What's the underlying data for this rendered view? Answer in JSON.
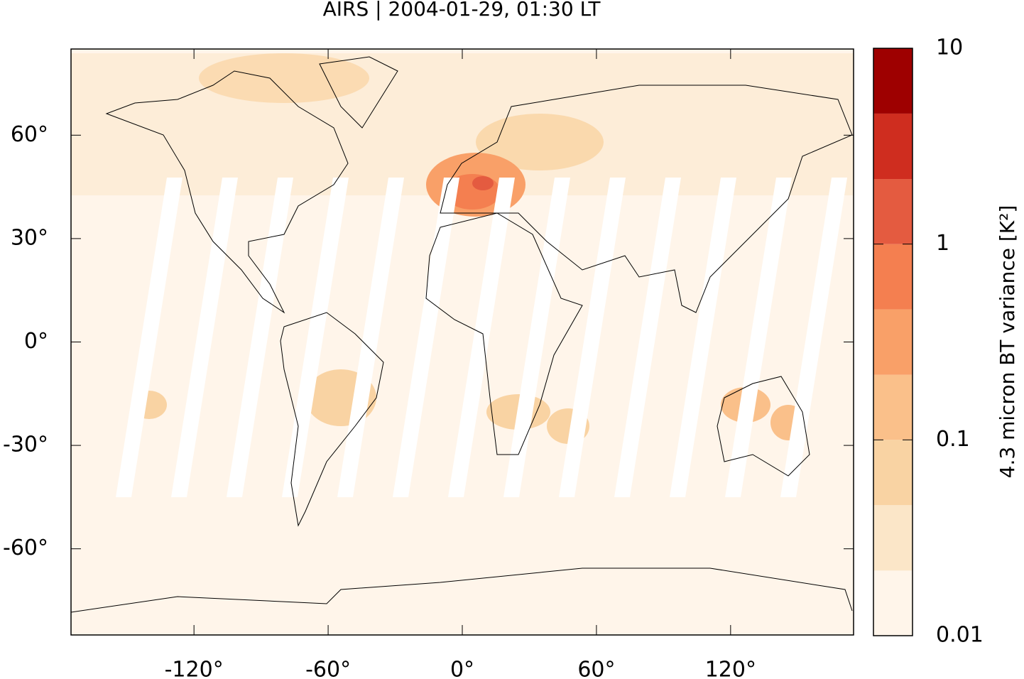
{
  "chart_data": {
    "type": "map",
    "title": "AIRS | 2004-01-29, 01:30 LT",
    "xlim": [
      -175,
      175
    ],
    "ylim": [
      -85,
      85
    ],
    "xticks": [
      {
        "value": -120,
        "label": "-120°"
      },
      {
        "value": -60,
        "label": "-60°"
      },
      {
        "value": 0,
        "label": "0°"
      },
      {
        "value": 60,
        "label": "60°"
      },
      {
        "value": 120,
        "label": "120°"
      }
    ],
    "yticks": [
      {
        "value": -60,
        "label": "-60°"
      },
      {
        "value": -30,
        "label": "-30°"
      },
      {
        "value": 0,
        "label": "0°"
      },
      {
        "value": 30,
        "label": "30°"
      },
      {
        "value": 60,
        "label": "60°"
      }
    ],
    "colorbar": {
      "label": "4.3 micron BT variance [K²]",
      "log_scale": true,
      "lim": [
        0.01,
        10
      ],
      "ticks": [
        0.01,
        0.1,
        1,
        10
      ],
      "levels": [
        0.01,
        0.0215,
        0.0464,
        0.1,
        0.215,
        0.464,
        1,
        2.15,
        4.64,
        10
      ],
      "colors": [
        "#fff5ea",
        "#fbe6c8",
        "#f9d3a3",
        "#fac08a",
        "#f9a068",
        "#f47f50",
        "#e45b40",
        "#cf2d1f",
        "#9e0000"
      ]
    }
  }
}
